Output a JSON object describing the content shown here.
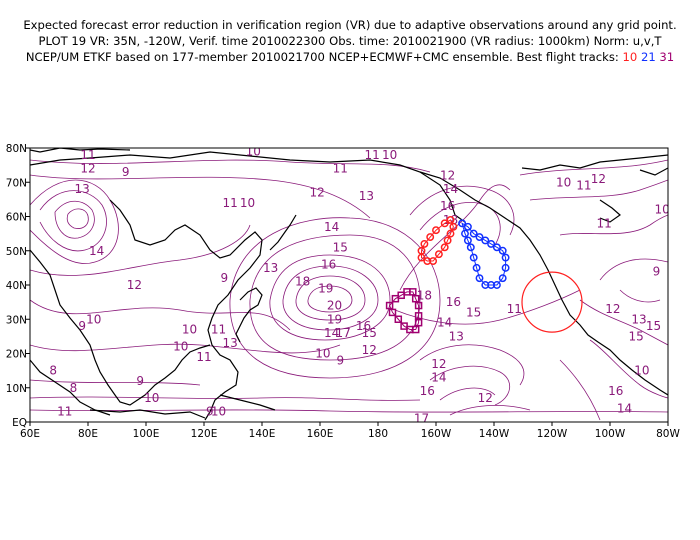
{
  "header": {
    "line1": "Expected forecast error reduction in verification region (VR) due to adaptive observations around any grid point.",
    "line2": "PLOT 19 VR: 35N, -120W, Verif. time 2010022300 Obs. time: 2010021900 (VR radius: 1000km) Norm: u,v,T",
    "line3_prefix": "NCEP/UM ETKF based on 177-member 2010021700 NCEP+ECMWF+CMC ensemble. Best flight tracks:",
    "tracks": [
      {
        "label": "10",
        "color": "#ff2020"
      },
      {
        "label": "21",
        "color": "#1030ff"
      },
      {
        "label": "31",
        "color": "#a00070"
      }
    ]
  },
  "axes": {
    "lon_labels": [
      "60E",
      "80E",
      "100E",
      "120E",
      "140E",
      "160E",
      "180",
      "160W",
      "140W",
      "120W",
      "100W",
      "80W"
    ],
    "lat_labels": [
      "EQ",
      "10N",
      "20N",
      "30N",
      "40N",
      "50N",
      "60N",
      "70N",
      "80N"
    ]
  },
  "contour_labels": [
    {
      "t": "11",
      "lon": 80,
      "lat": 78
    },
    {
      "t": "12",
      "lon": 80,
      "lat": 74
    },
    {
      "t": "13",
      "lon": 78,
      "lat": 68
    },
    {
      "t": "9",
      "lon": 93,
      "lat": 73
    },
    {
      "t": "14",
      "lon": 83,
      "lat": 50
    },
    {
      "t": "12",
      "lon": 96,
      "lat": 40
    },
    {
      "t": "10",
      "lon": 82,
      "lat": 30
    },
    {
      "t": "9",
      "lon": 78,
      "lat": 28
    },
    {
      "t": "8",
      "lon": 68,
      "lat": 15
    },
    {
      "t": "8",
      "lon": 75,
      "lat": 10
    },
    {
      "t": "9",
      "lon": 98,
      "lat": 12
    },
    {
      "t": "10",
      "lon": 102,
      "lat": 7
    },
    {
      "t": "11",
      "lon": 72,
      "lat": 3
    },
    {
      "t": "9",
      "lon": 122,
      "lat": 3
    },
    {
      "t": "10",
      "lon": 125,
      "lat": 3
    },
    {
      "t": "10",
      "lon": 137,
      "lat": 79
    },
    {
      "t": "11",
      "lon": 129,
      "lat": 64
    },
    {
      "t": "10",
      "lon": 135,
      "lat": 64
    },
    {
      "t": "9",
      "lon": 127,
      "lat": 42
    },
    {
      "t": "13",
      "lon": 143,
      "lat": 45
    },
    {
      "t": "10",
      "lon": 115,
      "lat": 27
    },
    {
      "t": "10",
      "lon": 112,
      "lat": 22
    },
    {
      "t": "11",
      "lon": 125,
      "lat": 27
    },
    {
      "t": "13",
      "lon": 129,
      "lat": 23
    },
    {
      "t": "11",
      "lon": 120,
      "lat": 19
    },
    {
      "t": "10",
      "lon": 161,
      "lat": 20
    },
    {
      "t": "9",
      "lon": 167,
      "lat": 18
    },
    {
      "t": "11",
      "lon": 167,
      "lat": 74
    },
    {
      "t": "12",
      "lon": 159,
      "lat": 67
    },
    {
      "t": "13",
      "lon": 176,
      "lat": 66
    },
    {
      "t": "14",
      "lon": 164,
      "lat": 57
    },
    {
      "t": "15",
      "lon": 167,
      "lat": 51
    },
    {
      "t": "16",
      "lon": 163,
      "lat": 46
    },
    {
      "t": "18",
      "lon": 154,
      "lat": 41
    },
    {
      "t": "19",
      "lon": 162,
      "lat": 39
    },
    {
      "t": "20",
      "lon": 165,
      "lat": 34
    },
    {
      "t": "19",
      "lon": 165,
      "lat": 30
    },
    {
      "t": "17",
      "lon": 168,
      "lat": 26
    },
    {
      "t": "16",
      "lon": 175,
      "lat": 28
    },
    {
      "t": "15",
      "lon": 177,
      "lat": 26
    },
    {
      "t": "14",
      "lon": 164,
      "lat": 26
    },
    {
      "t": "12",
      "lon": 177,
      "lat": 21
    },
    {
      "t": "18",
      "lon": 196,
      "lat": 37
    },
    {
      "t": "16",
      "lon": 206,
      "lat": 35
    },
    {
      "t": "14",
      "lon": 203,
      "lat": 29
    },
    {
      "t": "13",
      "lon": 207,
      "lat": 25
    },
    {
      "t": "15",
      "lon": 213,
      "lat": 32
    },
    {
      "t": "11",
      "lon": 227,
      "lat": 33
    },
    {
      "t": "12",
      "lon": 201,
      "lat": 17
    },
    {
      "t": "14",
      "lon": 201,
      "lat": 13
    },
    {
      "t": "16",
      "lon": 197,
      "lat": 9
    },
    {
      "t": "17",
      "lon": 195,
      "lat": 1
    },
    {
      "t": "16",
      "lon": 262,
      "lat": 9
    },
    {
      "t": "14",
      "lon": 265,
      "lat": 4
    },
    {
      "t": "12",
      "lon": 217,
      "lat": 7
    },
    {
      "t": "12",
      "lon": 204,
      "lat": 72
    },
    {
      "t": "14",
      "lon": 205,
      "lat": 68
    },
    {
      "t": "16",
      "lon": 204,
      "lat": 63
    },
    {
      "t": "18",
      "lon": 205,
      "lat": 59
    },
    {
      "t": "10",
      "lon": 244,
      "lat": 70
    },
    {
      "t": "11",
      "lon": 251,
      "lat": 69
    },
    {
      "t": "12",
      "lon": 256,
      "lat": 71
    },
    {
      "t": "11",
      "lon": 258,
      "lat": 58
    },
    {
      "t": "10",
      "lon": 278,
      "lat": 62
    },
    {
      "t": "9",
      "lon": 276,
      "lat": 44
    },
    {
      "t": "12",
      "lon": 261,
      "lat": 33
    },
    {
      "t": "15",
      "lon": 275,
      "lat": 28
    },
    {
      "t": "13",
      "lon": 270,
      "lat": 30
    },
    {
      "t": "15",
      "lon": 269,
      "lat": 25
    },
    {
      "t": "10",
      "lon": 271,
      "lat": 15
    },
    {
      "t": "10",
      "lon": 184,
      "lat": 78
    },
    {
      "t": "11",
      "lon": 178,
      "lat": 78
    }
  ],
  "verification_circle": {
    "lon": 240,
    "lat": 35,
    "radius_km": 1000,
    "color": "#ff2020"
  },
  "flight_tracks": [
    {
      "id": "10",
      "color": "#ff2020",
      "marker": "circle",
      "points": [
        [
          205,
          59
        ],
        [
          203,
          58
        ],
        [
          200,
          56
        ],
        [
          198,
          54
        ],
        [
          196,
          52
        ],
        [
          195,
          50
        ],
        [
          195,
          48
        ],
        [
          197,
          47
        ],
        [
          199,
          47
        ],
        [
          201,
          49
        ],
        [
          203,
          51
        ],
        [
          204,
          53
        ],
        [
          205,
          55
        ],
        [
          206,
          57
        ]
      ]
    },
    {
      "id": "21",
      "color": "#1030ff",
      "marker": "circle",
      "points": [
        [
          209,
          58
        ],
        [
          211,
          57
        ],
        [
          213,
          55
        ],
        [
          215,
          54
        ],
        [
          217,
          53
        ],
        [
          219,
          52
        ],
        [
          221,
          51
        ],
        [
          223,
          50
        ],
        [
          224,
          48
        ],
        [
          224,
          45
        ],
        [
          223,
          42
        ],
        [
          221,
          40
        ],
        [
          219,
          40
        ],
        [
          217,
          40
        ],
        [
          215,
          42
        ],
        [
          214,
          45
        ],
        [
          213,
          48
        ],
        [
          212,
          51
        ],
        [
          211,
          53
        ],
        [
          210,
          55
        ]
      ]
    },
    {
      "id": "31",
      "color": "#a00070",
      "marker": "square",
      "points": [
        [
          188,
          37
        ],
        [
          190,
          38
        ],
        [
          192,
          38
        ],
        [
          193,
          36
        ],
        [
          194,
          34
        ],
        [
          194,
          31
        ],
        [
          194,
          29
        ],
        [
          193,
          27
        ],
        [
          191,
          27
        ],
        [
          189,
          28
        ],
        [
          187,
          30
        ],
        [
          185,
          32
        ],
        [
          184,
          34
        ],
        [
          186,
          36
        ]
      ]
    }
  ]
}
